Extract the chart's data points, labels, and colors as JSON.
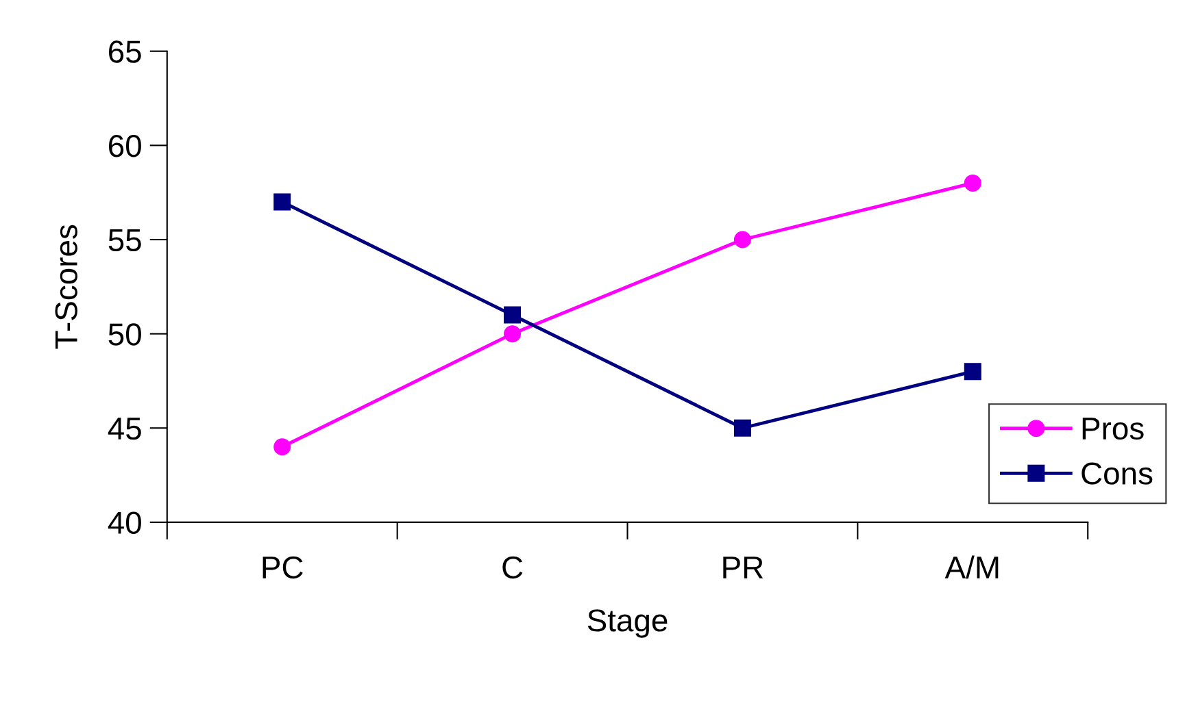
{
  "chart_data": {
    "type": "line",
    "xlabel": "Stage",
    "ylabel": "T-Scores",
    "categories": [
      "PC",
      "C",
      "PR",
      "A/M"
    ],
    "series": [
      {
        "name": "Pros",
        "color": "#ff00ff",
        "values": [
          44,
          50,
          55,
          58
        ],
        "marker": "circle"
      },
      {
        "name": "Cons",
        "color": "#000080",
        "values": [
          57,
          51,
          45,
          48
        ],
        "marker": "square"
      }
    ],
    "ylim": [
      40,
      65
    ],
    "yticks": [
      40,
      45,
      50,
      55,
      60,
      65
    ],
    "grid": false,
    "legend": "bottom right",
    "line_style": "solid"
  }
}
